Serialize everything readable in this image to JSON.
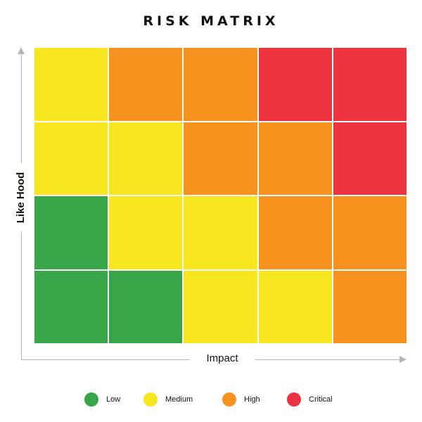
{
  "title": "RISK MATRIX",
  "x_axis_label": "Impact",
  "y_axis_label": "Like Hood",
  "colors": {
    "low": "#37a649",
    "medium": "#f8e61f",
    "high": "#f7921e",
    "critical": "#ee3340",
    "axis": "#b5b5b5"
  },
  "matrix": {
    "rows": 4,
    "columns": 5,
    "cells": [
      [
        "medium",
        "high",
        "high",
        "critical",
        "critical"
      ],
      [
        "medium",
        "medium",
        "high",
        "high",
        "critical"
      ],
      [
        "low",
        "medium",
        "medium",
        "high",
        "high"
      ],
      [
        "low",
        "low",
        "medium",
        "medium",
        "high"
      ]
    ]
  },
  "legend": [
    {
      "level": "low",
      "label": "Low"
    },
    {
      "level": "medium",
      "label": "Medium"
    },
    {
      "level": "high",
      "label": "High"
    },
    {
      "level": "critical",
      "label": "Critical"
    }
  ]
}
